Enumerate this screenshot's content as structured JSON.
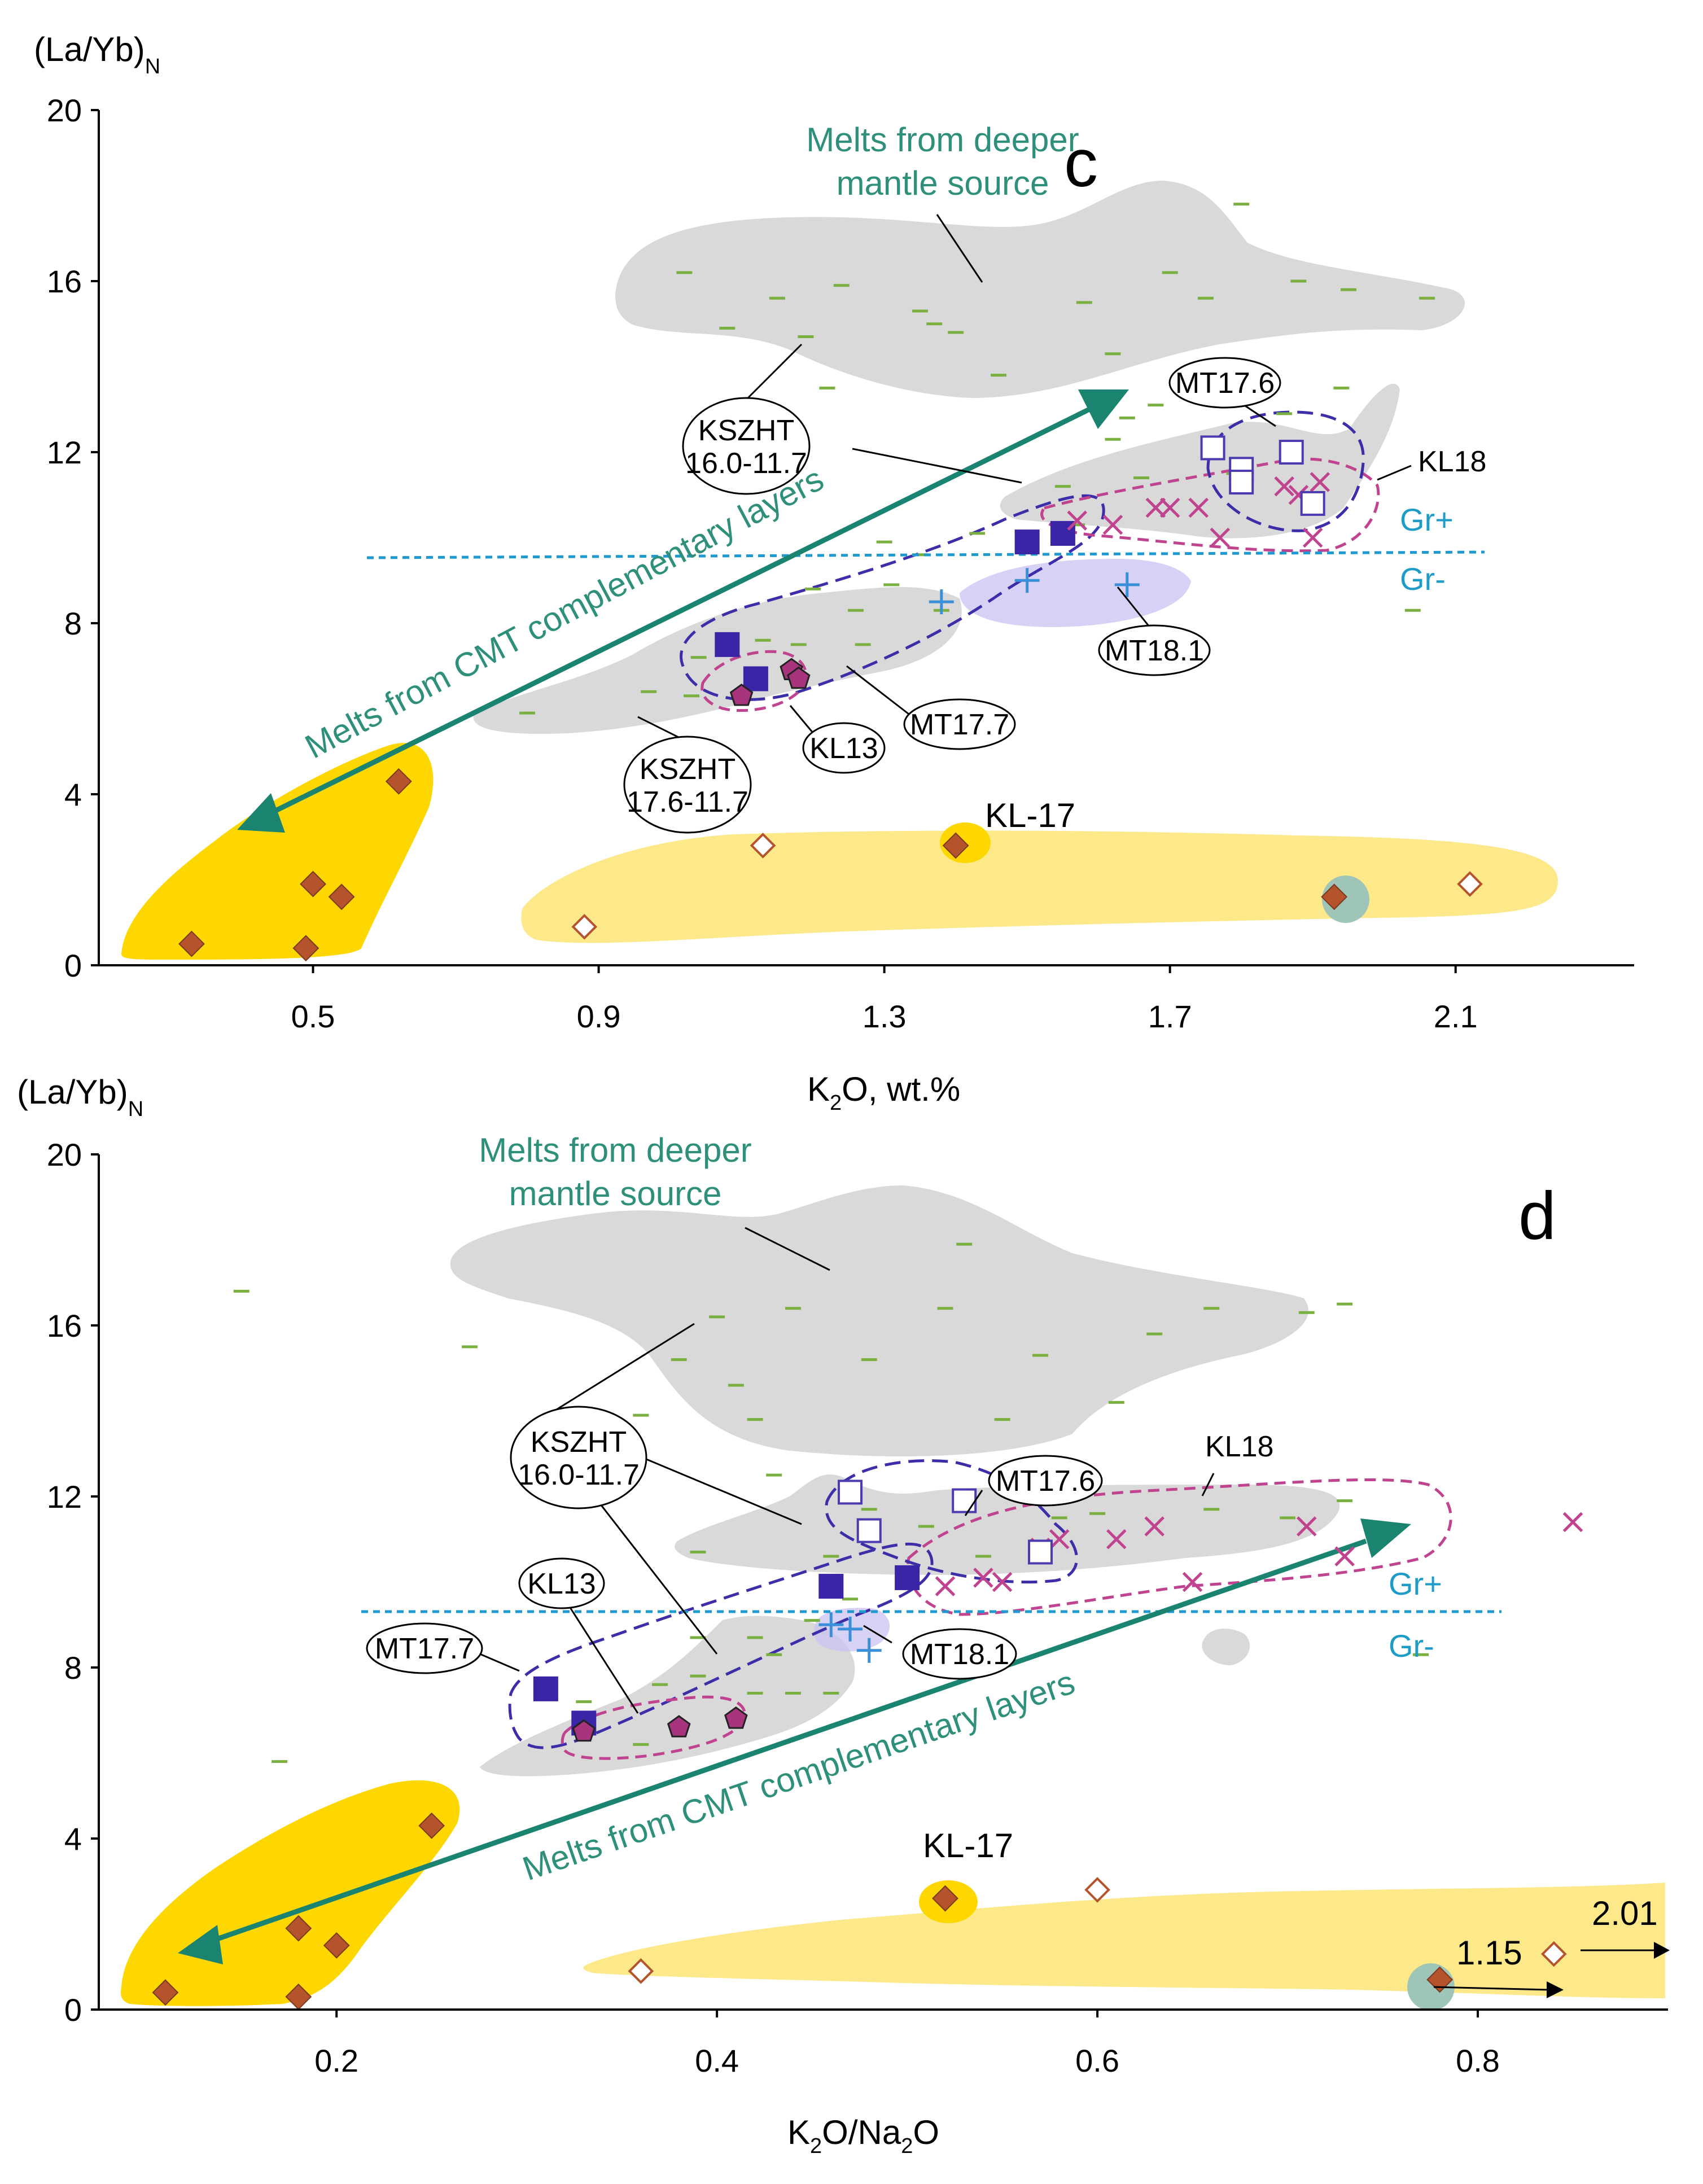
{
  "chart_data": [
    {
      "panel": "c",
      "type": "scatter",
      "ylabel": "(La/Yb)N",
      "xlabel": "K2O, wt.%",
      "xlim": [
        0.2,
        2.35
      ],
      "ylim": [
        0,
        20
      ],
      "xticks": [
        0.5,
        0.9,
        1.3,
        1.7,
        2.1
      ],
      "xtick_labels": [
        "0.5",
        "0.9",
        "1.3",
        "1.7",
        "2.1"
      ],
      "yticks": [
        0,
        4,
        8,
        12,
        16,
        20
      ],
      "ytick_labels": [
        "0",
        "4",
        "8",
        "12",
        "16",
        "20"
      ],
      "annotations": {
        "deep_melt": [
          "Melts from deeper",
          "mantle source"
        ],
        "cmt": "Melts from CMT complementary layers",
        "kszht_upper": [
          "KSZHT",
          "16.0-11.7"
        ],
        "kszht_lower": [
          "KSZHT",
          "17.6-11.7"
        ],
        "mt176": "MT17.6",
        "mt177": "MT17.7",
        "mt181": "MT18.1",
        "kl13": "KL13",
        "kl18": "KL18",
        "kl17": "KL-17",
        "gr_plus": "Gr+",
        "gr_minus": "Gr-"
      },
      "series": [
        {
          "name": "KSZHT (green dashes)",
          "marker": "dash",
          "points": [
            [
              1.02,
              16.2
            ],
            [
              1.08,
              14.9
            ],
            [
              1.15,
              15.6
            ],
            [
              1.19,
              14.7
            ],
            [
              1.22,
              13.5
            ],
            [
              1.24,
              15.9
            ],
            [
              1.35,
              15.3
            ],
            [
              1.37,
              15.0
            ],
            [
              1.4,
              14.8
            ],
            [
              1.46,
              13.8
            ],
            [
              1.58,
              15.5
            ],
            [
              1.62,
              14.3
            ],
            [
              1.7,
              16.2
            ],
            [
              1.88,
              16.0
            ],
            [
              1.95,
              15.8
            ],
            [
              2.06,
              15.6
            ],
            [
              1.8,
              17.8
            ],
            [
              1.75,
              15.6
            ],
            [
              1.68,
              13.1
            ],
            [
              1.64,
              12.8
            ],
            [
              1.62,
              12.3
            ],
            [
              1.66,
              11.4
            ],
            [
              1.55,
              11.2
            ],
            [
              1.79,
              11.5
            ],
            [
              1.86,
              12.9
            ],
            [
              1.94,
              13.5
            ],
            [
              1.57,
              10.3
            ],
            [
              1.43,
              10.1
            ],
            [
              1.35,
              9.6
            ],
            [
              1.3,
              9.9
            ],
            [
              1.2,
              8.8
            ],
            [
              1.26,
              8.3
            ],
            [
              1.31,
              8.9
            ],
            [
              1.38,
              8.3
            ],
            [
              1.27,
              7.5
            ],
            [
              1.04,
              7.2
            ],
            [
              1.13,
              7.6
            ],
            [
              1.18,
              7.5
            ],
            [
              0.97,
              6.4
            ],
            [
              0.8,
              5.9
            ],
            [
              1.03,
              6.3
            ],
            [
              2.04,
              8.3
            ]
          ]
        },
        {
          "name": "MT17.7",
          "marker": "filled-square",
          "points": [
            [
              1.08,
              7.5
            ],
            [
              1.12,
              6.7
            ],
            [
              1.5,
              9.9
            ],
            [
              1.55,
              10.1
            ]
          ]
        },
        {
          "name": "KL13",
          "marker": "pentagon",
          "points": [
            [
              1.1,
              6.3
            ],
            [
              1.17,
              6.9
            ],
            [
              1.18,
              6.7
            ]
          ]
        },
        {
          "name": "MT18.1",
          "marker": "plus",
          "points": [
            [
              1.38,
              8.5
            ],
            [
              1.5,
              9.0
            ],
            [
              1.64,
              8.9
            ]
          ]
        },
        {
          "name": "KL18",
          "marker": "cross",
          "points": [
            [
              1.57,
              10.4
            ],
            [
              1.62,
              10.3
            ],
            [
              1.68,
              10.7
            ],
            [
              1.7,
              10.7
            ],
            [
              1.74,
              10.7
            ],
            [
              1.77,
              10.0
            ],
            [
              1.86,
              11.2
            ],
            [
              1.88,
              11.0
            ],
            [
              1.9,
              10.0
            ],
            [
              1.91,
              11.3
            ]
          ]
        },
        {
          "name": "MT17.6",
          "marker": "open-square",
          "points": [
            [
              1.76,
              12.1
            ],
            [
              1.8,
              11.6
            ],
            [
              1.8,
              11.3
            ],
            [
              1.87,
              12.0
            ],
            [
              1.9,
              10.8
            ]
          ]
        },
        {
          "name": "CMT melts",
          "marker": "filled-diamond",
          "points": [
            [
              0.33,
              0.5
            ],
            [
              0.5,
              1.9
            ],
            [
              0.54,
              1.6
            ],
            [
              0.49,
              0.4
            ],
            [
              0.62,
              4.3
            ]
          ]
        },
        {
          "name": "Open diamonds",
          "marker": "open-diamond",
          "points": [
            [
              0.88,
              0.9
            ],
            [
              1.13,
              2.8
            ],
            [
              2.12,
              1.9
            ]
          ]
        },
        {
          "name": "KL-17",
          "marker": "filled-diamond",
          "points": [
            [
              1.4,
              2.8
            ]
          ]
        },
        {
          "name": "Highlighted",
          "marker": "filled-diamond-circled",
          "points": [
            [
              1.93,
              1.6
            ]
          ]
        }
      ]
    },
    {
      "panel": "d",
      "type": "scatter",
      "ylabel": "(La/Yb)N",
      "xlabel": "K2O/Na2O",
      "xlim": [
        0.075,
        0.9
      ],
      "ylim": [
        0,
        20
      ],
      "xticks": [
        0.2,
        0.4,
        0.6,
        0.8
      ],
      "xtick_labels": [
        "0.2",
        "0.4",
        "0.6",
        "0.8"
      ],
      "yticks": [
        0,
        4,
        8,
        12,
        16,
        20
      ],
      "ytick_labels": [
        "0",
        "4",
        "8",
        "12",
        "16",
        "20"
      ],
      "annotations": {
        "deep_melt": [
          "Melts from deeper",
          "mantle source"
        ],
        "cmt": "Melts from CMT complementary layers",
        "kszht": [
          "KSZHT",
          "16.0-11.7"
        ],
        "mt176": "MT17.6",
        "mt177": "MT17.7",
        "mt181": "MT18.1",
        "kl13": "KL13",
        "kl18": "KL18",
        "kl17": "KL-17",
        "gr_plus": "Gr+",
        "gr_minus": "Gr-",
        "off_scale_1": "1.15",
        "off_scale_2": "2.01"
      },
      "series": [
        {
          "name": "KSZHT (green dashes)",
          "marker": "dash",
          "points": [
            [
              0.15,
              16.8
            ],
            [
              0.27,
              15.5
            ],
            [
              0.38,
              15.2
            ],
            [
              0.36,
              13.9
            ],
            [
              0.4,
              16.2
            ],
            [
              0.41,
              14.6
            ],
            [
              0.44,
              16.4
            ],
            [
              0.48,
              15.2
            ],
            [
              0.53,
              17.9
            ],
            [
              0.52,
              16.4
            ],
            [
              0.57,
              15.3
            ],
            [
              0.61,
              14.2
            ],
            [
              0.63,
              15.8
            ],
            [
              0.66,
              16.4
            ],
            [
              0.71,
              16.3
            ],
            [
              0.73,
              16.5
            ],
            [
              0.55,
              13.8
            ],
            [
              0.42,
              13.8
            ],
            [
              0.43,
              12.5
            ],
            [
              0.48,
              11.7
            ],
            [
              0.51,
              11.3
            ],
            [
              0.58,
              11.5
            ],
            [
              0.6,
              11.6
            ],
            [
              0.66,
              11.7
            ],
            [
              0.7,
              11.5
            ],
            [
              0.73,
              11.9
            ],
            [
              0.39,
              10.7
            ],
            [
              0.46,
              10.6
            ],
            [
              0.54,
              10.6
            ],
            [
              0.47,
              9.6
            ],
            [
              0.39,
              8.7
            ],
            [
              0.42,
              8.7
            ],
            [
              0.45,
              9.1
            ],
            [
              0.43,
              8.3
            ],
            [
              0.39,
              7.8
            ],
            [
              0.42,
              7.4
            ],
            [
              0.44,
              7.4
            ],
            [
              0.46,
              7.4
            ],
            [
              0.37,
              7.6
            ],
            [
              0.33,
              7.2
            ],
            [
              0.36,
              6.2
            ],
            [
              0.17,
              5.8
            ],
            [
              0.77,
              8.3
            ]
          ]
        },
        {
          "name": "MT17.7",
          "marker": "filled-square",
          "points": [
            [
              0.31,
              7.5
            ],
            [
              0.33,
              6.7
            ],
            [
              0.46,
              9.9
            ],
            [
              0.5,
              10.1
            ]
          ]
        },
        {
          "name": "KL13",
          "marker": "pentagon",
          "points": [
            [
              0.33,
              6.5
            ],
            [
              0.38,
              6.6
            ],
            [
              0.41,
              6.8
            ]
          ]
        },
        {
          "name": "MT18.1",
          "marker": "plus",
          "points": [
            [
              0.46,
              9.0
            ],
            [
              0.47,
              8.9
            ],
            [
              0.48,
              8.4
            ]
          ]
        },
        {
          "name": "KL18",
          "marker": "cross",
          "points": [
            [
              0.52,
              9.9
            ],
            [
              0.54,
              10.1
            ],
            [
              0.55,
              10.0
            ],
            [
              0.57,
              10.8
            ],
            [
              0.58,
              11.0
            ],
            [
              0.61,
              11.0
            ],
            [
              0.63,
              11.3
            ],
            [
              0.65,
              10.0
            ],
            [
              0.71,
              11.3
            ],
            [
              0.73,
              10.6
            ],
            [
              0.85,
              11.4
            ]
          ]
        },
        {
          "name": "MT17.6",
          "marker": "open-square",
          "points": [
            [
              0.47,
              12.1
            ],
            [
              0.48,
              11.2
            ],
            [
              0.53,
              11.9
            ],
            [
              0.57,
              10.7
            ]
          ]
        },
        {
          "name": "CMT melts",
          "marker": "filled-diamond",
          "points": [
            [
              0.11,
              0.4
            ],
            [
              0.18,
              1.9
            ],
            [
              0.2,
              1.5
            ],
            [
              0.18,
              0.3
            ],
            [
              0.25,
              4.3
            ]
          ]
        },
        {
          "name": "Open diamonds",
          "marker": "open-diamond",
          "points": [
            [
              0.36,
              0.9
            ],
            [
              0.6,
              2.8
            ],
            [
              0.84,
              1.3
            ]
          ]
        },
        {
          "name": "KL-17",
          "marker": "filled-diamond",
          "points": [
            [
              0.52,
              2.6
            ]
          ]
        },
        {
          "name": "Highlighted",
          "marker": "filled-diamond-circled",
          "points": [
            [
              0.78,
              0.7
            ]
          ]
        }
      ]
    }
  ]
}
